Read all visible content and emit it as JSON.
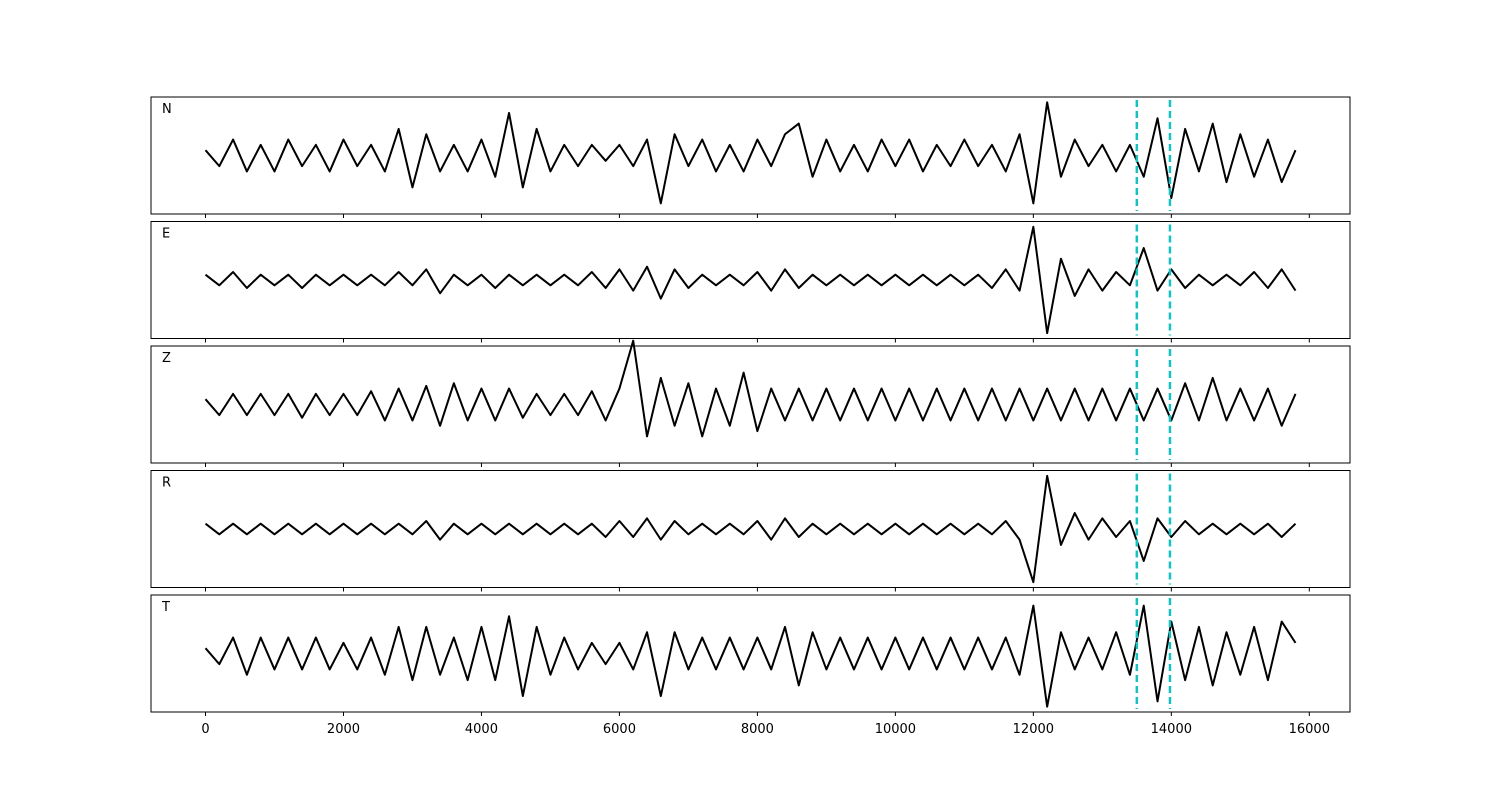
{
  "chart_data": {
    "type": "line",
    "x": [
      0,
      200,
      400,
      600,
      800,
      1000,
      1200,
      1400,
      1600,
      1800,
      2000,
      2200,
      2400,
      2600,
      2800,
      3000,
      3200,
      3400,
      3600,
      3800,
      4000,
      4200,
      4400,
      4600,
      4800,
      5000,
      5200,
      5400,
      5600,
      5800,
      6000,
      6200,
      6400,
      6600,
      6800,
      7000,
      7200,
      7400,
      7600,
      7800,
      8000,
      8200,
      8400,
      8600,
      8800,
      9000,
      9200,
      9400,
      9600,
      9800,
      10000,
      10200,
      10400,
      10600,
      10800,
      11000,
      11200,
      11400,
      11600,
      11800,
      12000,
      12200,
      12400,
      12600,
      12800,
      13000,
      13200,
      13400,
      13600,
      13800,
      14000,
      14200,
      14400,
      14600,
      14800,
      15000,
      15200,
      15400,
      15600,
      15800
    ],
    "xlim": [
      -790,
      16590
    ],
    "xticks": [
      0,
      2000,
      4000,
      6000,
      8000,
      10000,
      12000,
      14000,
      16000
    ],
    "ylim": [
      -1.1,
      1.1
    ],
    "markers": [
      13500,
      13980
    ],
    "marker_color": "#17c1c1",
    "series": [
      {
        "name": "N",
        "color": "#000000",
        "values": [
          0.1,
          -0.2,
          0.3,
          -0.3,
          0.2,
          -0.3,
          0.3,
          -0.2,
          0.2,
          -0.3,
          0.3,
          -0.2,
          0.2,
          -0.3,
          0.5,
          -0.6,
          0.4,
          -0.3,
          0.2,
          -0.3,
          0.3,
          -0.4,
          0.8,
          -0.6,
          0.5,
          -0.3,
          0.2,
          -0.2,
          0.2,
          -0.1,
          0.2,
          -0.2,
          0.3,
          -0.9,
          0.4,
          -0.2,
          0.3,
          -0.3,
          0.2,
          -0.3,
          0.3,
          -0.2,
          0.4,
          0.6,
          -0.4,
          0.3,
          -0.3,
          0.2,
          -0.3,
          0.3,
          -0.2,
          0.3,
          -0.3,
          0.2,
          -0.2,
          0.3,
          -0.2,
          0.2,
          -0.3,
          0.4,
          -0.9,
          1.0,
          -0.4,
          0.3,
          -0.2,
          0.2,
          -0.3,
          0.2,
          -0.4,
          0.7,
          -0.8,
          0.5,
          -0.3,
          0.6,
          -0.5,
          0.4,
          -0.4,
          0.3,
          -0.5,
          0.1
        ]
      },
      {
        "name": "E",
        "color": "#000000",
        "values": [
          0.1,
          -0.1,
          0.15,
          -0.15,
          0.1,
          -0.1,
          0.1,
          -0.15,
          0.1,
          -0.1,
          0.1,
          -0.1,
          0.1,
          -0.1,
          0.15,
          -0.1,
          0.2,
          -0.25,
          0.1,
          -0.1,
          0.1,
          -0.15,
          0.1,
          -0.1,
          0.1,
          -0.1,
          0.1,
          -0.1,
          0.15,
          -0.15,
          0.2,
          -0.2,
          0.25,
          -0.35,
          0.2,
          -0.15,
          0.1,
          -0.1,
          0.1,
          -0.1,
          0.15,
          -0.2,
          0.2,
          -0.15,
          0.1,
          -0.1,
          0.1,
          -0.1,
          0.1,
          -0.1,
          0.1,
          -0.1,
          0.1,
          -0.1,
          0.1,
          -0.1,
          0.1,
          -0.15,
          0.2,
          -0.2,
          1.0,
          -1.0,
          0.4,
          -0.3,
          0.2,
          -0.2,
          0.15,
          -0.1,
          0.6,
          -0.2,
          0.2,
          -0.15,
          0.1,
          -0.1,
          0.1,
          -0.1,
          0.15,
          -0.15,
          0.2,
          -0.2
        ]
      },
      {
        "name": "Z",
        "color": "#000000",
        "values": [
          0.1,
          -0.2,
          0.2,
          -0.2,
          0.2,
          -0.2,
          0.2,
          -0.25,
          0.2,
          -0.2,
          0.2,
          -0.2,
          0.25,
          -0.3,
          0.3,
          -0.3,
          0.35,
          -0.4,
          0.4,
          -0.3,
          0.3,
          -0.3,
          0.3,
          -0.25,
          0.2,
          -0.2,
          0.2,
          -0.2,
          0.25,
          -0.3,
          0.3,
          1.2,
          -0.6,
          0.5,
          -0.4,
          0.4,
          -0.6,
          0.3,
          -0.4,
          0.6,
          -0.5,
          0.3,
          -0.3,
          0.3,
          -0.3,
          0.3,
          -0.3,
          0.3,
          -0.3,
          0.3,
          -0.3,
          0.3,
          -0.3,
          0.3,
          -0.3,
          0.3,
          -0.3,
          0.3,
          -0.3,
          0.3,
          -0.3,
          0.3,
          -0.3,
          0.3,
          -0.3,
          0.3,
          -0.3,
          0.3,
          -0.3,
          0.3,
          -0.3,
          0.4,
          -0.3,
          0.5,
          -0.3,
          0.3,
          -0.3,
          0.3,
          -0.4,
          0.2
        ]
      },
      {
        "name": "R",
        "color": "#000000",
        "values": [
          0.1,
          -0.1,
          0.1,
          -0.1,
          0.1,
          -0.1,
          0.1,
          -0.1,
          0.1,
          -0.1,
          0.1,
          -0.1,
          0.1,
          -0.1,
          0.1,
          -0.1,
          0.15,
          -0.2,
          0.1,
          -0.1,
          0.1,
          -0.1,
          0.1,
          -0.1,
          0.1,
          -0.1,
          0.1,
          -0.1,
          0.1,
          -0.15,
          0.15,
          -0.15,
          0.2,
          -0.2,
          0.15,
          -0.1,
          0.1,
          -0.1,
          0.1,
          -0.1,
          0.15,
          -0.2,
          0.2,
          -0.15,
          0.1,
          -0.1,
          0.1,
          -0.1,
          0.1,
          -0.1,
          0.1,
          -0.1,
          0.1,
          -0.1,
          0.1,
          -0.1,
          0.1,
          -0.1,
          0.15,
          -0.2,
          -1.0,
          1.0,
          -0.3,
          0.3,
          -0.2,
          0.2,
          -0.15,
          0.15,
          -0.6,
          0.2,
          -0.15,
          0.15,
          -0.1,
          0.1,
          -0.1,
          0.1,
          -0.1,
          0.1,
          -0.15,
          0.1
        ]
      },
      {
        "name": "T",
        "color": "#000000",
        "values": [
          0.1,
          -0.2,
          0.3,
          -0.4,
          0.3,
          -0.3,
          0.3,
          -0.3,
          0.3,
          -0.3,
          0.2,
          -0.3,
          0.3,
          -0.4,
          0.5,
          -0.5,
          0.5,
          -0.4,
          0.3,
          -0.5,
          0.5,
          -0.5,
          0.7,
          -0.8,
          0.5,
          -0.4,
          0.3,
          -0.3,
          0.2,
          -0.2,
          0.2,
          -0.3,
          0.4,
          -0.8,
          0.4,
          -0.3,
          0.3,
          -0.3,
          0.3,
          -0.3,
          0.3,
          -0.3,
          0.5,
          -0.6,
          0.4,
          -0.3,
          0.3,
          -0.3,
          0.3,
          -0.3,
          0.3,
          -0.3,
          0.3,
          -0.3,
          0.3,
          -0.3,
          0.3,
          -0.3,
          0.3,
          -0.4,
          0.9,
          -1.0,
          0.4,
          -0.3,
          0.3,
          -0.3,
          0.4,
          -0.4,
          0.9,
          -0.9,
          0.6,
          -0.5,
          0.5,
          -0.6,
          0.4,
          -0.4,
          0.5,
          -0.5,
          0.6,
          0.2
        ]
      }
    ]
  }
}
